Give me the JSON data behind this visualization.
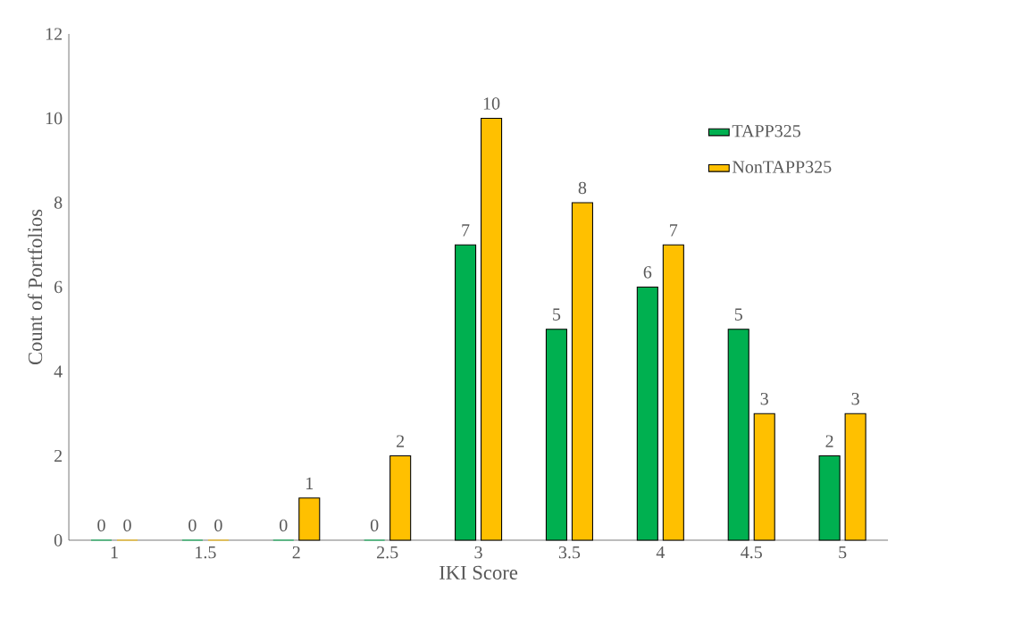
{
  "chart_data": {
    "type": "bar",
    "xlabel": "IKI Score",
    "ylabel": "Count of Portfolios",
    "categories": [
      "1",
      "1.5",
      "2",
      "2.5",
      "3",
      "3.5",
      "4",
      "4.5",
      "5"
    ],
    "series": [
      {
        "name": "TAPP325",
        "color": "#00b050",
        "values": [
          0,
          0,
          0,
          0,
          7,
          5,
          6,
          5,
          2
        ]
      },
      {
        "name": "NonTAPP325",
        "color": "#ffc000",
        "values": [
          0,
          0,
          1,
          2,
          10,
          8,
          7,
          3,
          3
        ]
      }
    ],
    "ylim": [
      0,
      12
    ],
    "yticks": [
      0,
      2,
      4,
      6,
      8,
      10,
      12
    ],
    "data_labels": true,
    "legend": "right",
    "grid": false
  }
}
